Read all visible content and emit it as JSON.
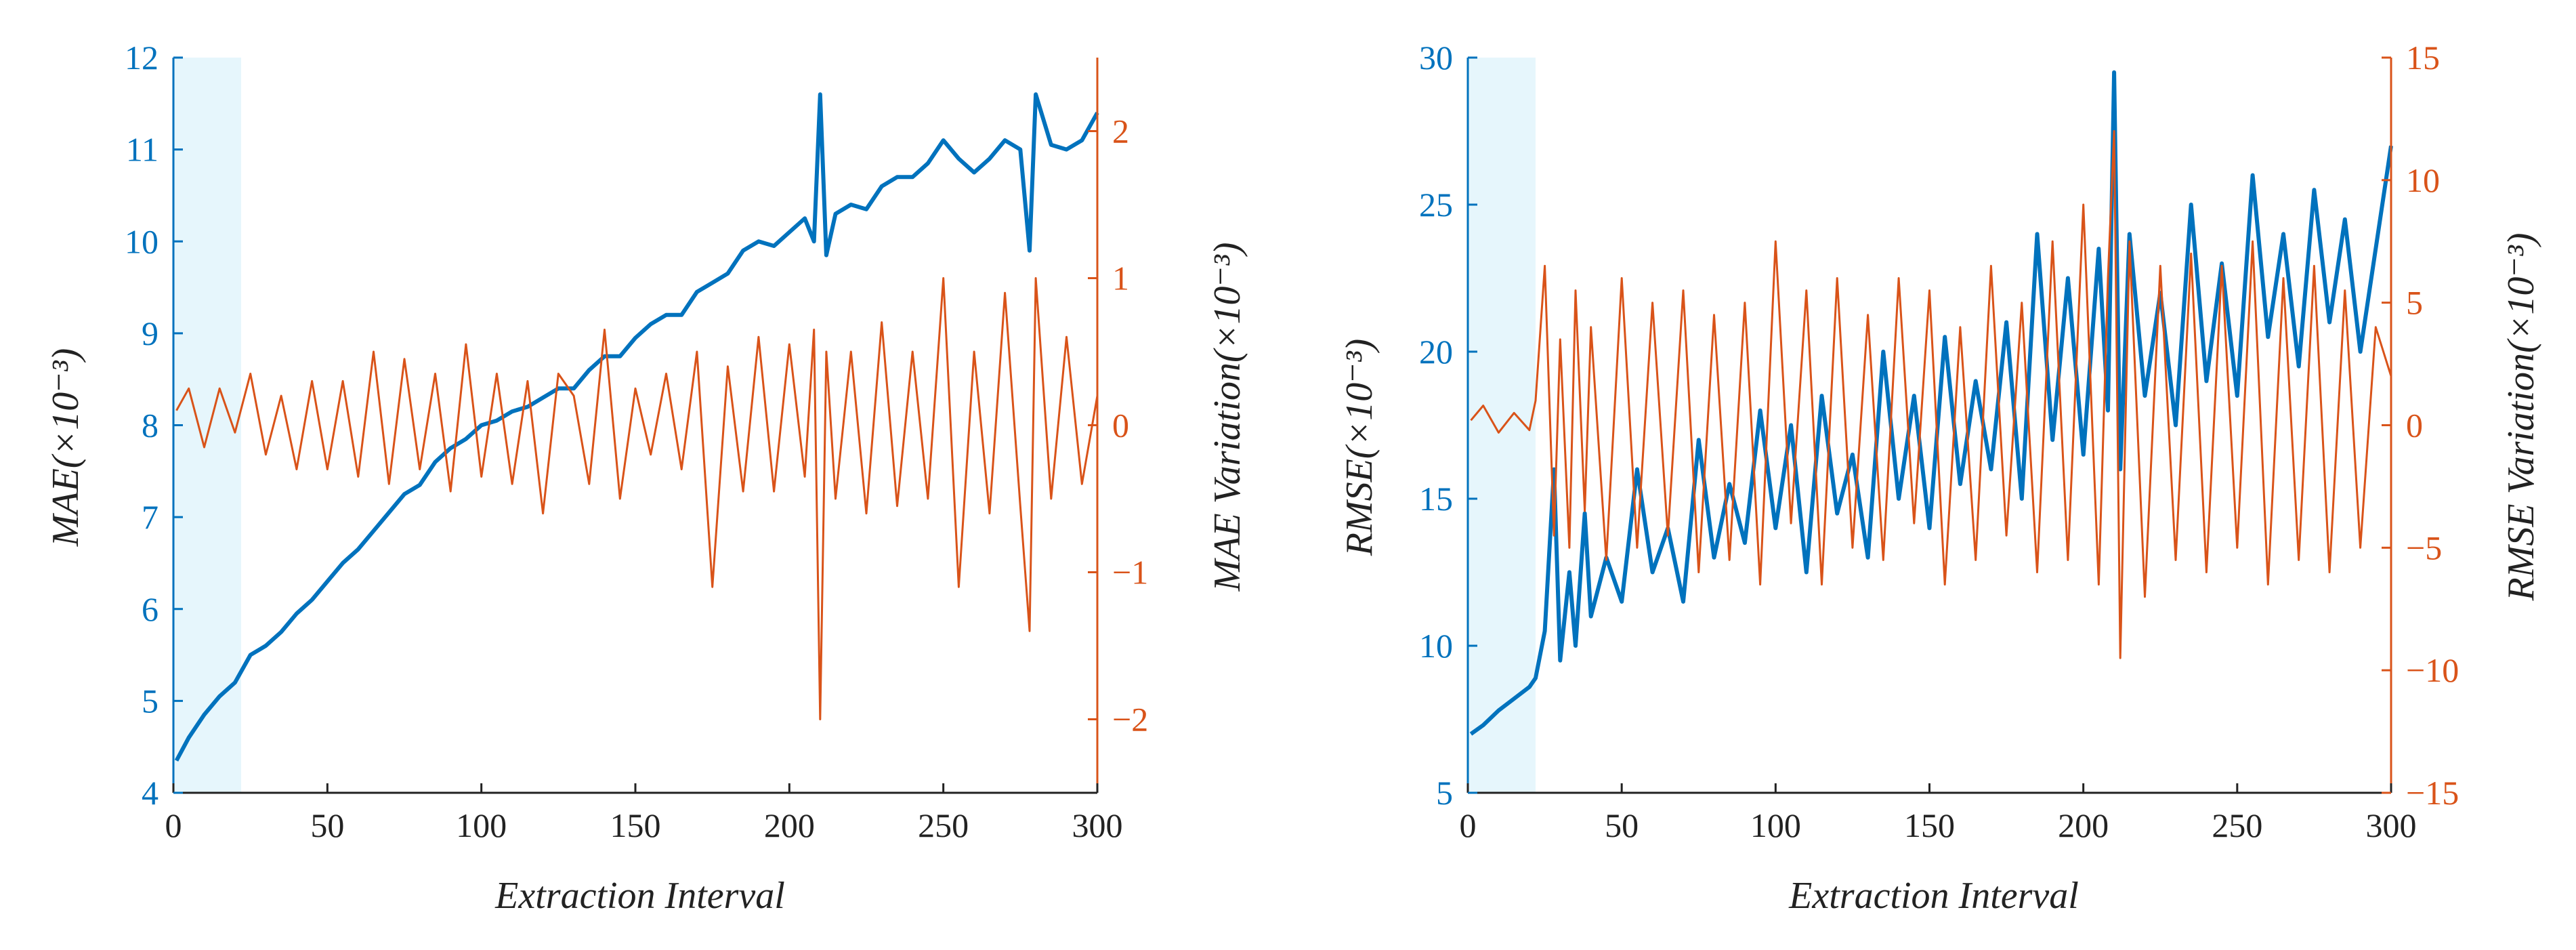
{
  "colors": {
    "left_axis": "#0072BD",
    "right_axis": "#D95319",
    "highlight": "#E6F6FC",
    "axis_black": "#222222"
  },
  "highlight_range": [
    0,
    22
  ],
  "chart_data": [
    {
      "id": "mae",
      "type": "line",
      "title": "",
      "xlabel": "Extraction Interval",
      "ylabel_left": "MAE(×10⁻³)",
      "ylabel_right": "MAE Variation(×10⁻³)",
      "xlim": [
        0,
        300
      ],
      "ylim_left": [
        4,
        12
      ],
      "ylim_right": [
        -2.5,
        2.5
      ],
      "x_ticks": [
        "0",
        "50",
        "100",
        "150",
        "200",
        "250",
        "300"
      ],
      "x_tick_values": [
        0,
        50,
        100,
        150,
        200,
        250,
        300
      ],
      "left_ticks": [
        "4",
        "5",
        "6",
        "7",
        "8",
        "9",
        "10",
        "11",
        "12"
      ],
      "left_tick_values": [
        4,
        5,
        6,
        7,
        8,
        9,
        10,
        11,
        12
      ],
      "right_ticks": [
        "−2",
        "−1",
        "0",
        "1",
        "2"
      ],
      "right_tick_values": [
        -2,
        -1,
        0,
        1,
        2
      ],
      "highlight_range": [
        0,
        22
      ],
      "series": [
        {
          "name": "MAE",
          "axis": "left",
          "x": [
            1,
            5,
            10,
            15,
            20,
            25,
            30,
            35,
            40,
            45,
            50,
            55,
            60,
            65,
            70,
            75,
            80,
            85,
            90,
            95,
            100,
            105,
            110,
            115,
            120,
            125,
            130,
            135,
            140,
            145,
            150,
            155,
            160,
            165,
            170,
            175,
            180,
            185,
            190,
            195,
            200,
            205,
            208,
            210,
            212,
            215,
            220,
            225,
            230,
            235,
            240,
            245,
            250,
            255,
            260,
            265,
            270,
            275,
            278,
            280,
            285,
            290,
            295,
            300
          ],
          "values": [
            4.35,
            4.6,
            4.85,
            5.05,
            5.2,
            5.5,
            5.6,
            5.75,
            5.95,
            6.1,
            6.3,
            6.5,
            6.65,
            6.85,
            7.05,
            7.25,
            7.35,
            7.6,
            7.75,
            7.85,
            8.0,
            8.05,
            8.15,
            8.2,
            8.3,
            8.4,
            8.4,
            8.6,
            8.75,
            8.75,
            8.95,
            9.1,
            9.2,
            9.2,
            9.45,
            9.55,
            9.65,
            9.9,
            10.0,
            9.95,
            10.1,
            10.25,
            10.0,
            11.6,
            9.85,
            10.3,
            10.4,
            10.35,
            10.6,
            10.7,
            10.7,
            10.85,
            11.1,
            10.9,
            10.75,
            10.9,
            11.1,
            11.0,
            9.9,
            11.6,
            11.05,
            11.0,
            11.1,
            11.4
          ],
          "color": "#0072BD"
        },
        {
          "name": "MAE Variation",
          "axis": "right",
          "x": [
            1,
            5,
            10,
            15,
            20,
            25,
            30,
            35,
            40,
            45,
            50,
            55,
            60,
            65,
            70,
            75,
            80,
            85,
            90,
            95,
            100,
            105,
            110,
            115,
            120,
            125,
            130,
            135,
            140,
            145,
            150,
            155,
            160,
            165,
            170,
            175,
            180,
            185,
            190,
            195,
            200,
            205,
            208,
            210,
            212,
            215,
            220,
            225,
            230,
            235,
            240,
            245,
            250,
            255,
            260,
            265,
            270,
            275,
            278,
            280,
            285,
            290,
            295,
            300
          ],
          "values": [
            0.1,
            0.25,
            -0.15,
            0.25,
            -0.05,
            0.35,
            -0.2,
            0.2,
            -0.3,
            0.3,
            -0.3,
            0.3,
            -0.35,
            0.5,
            -0.4,
            0.45,
            -0.3,
            0.35,
            -0.45,
            0.55,
            -0.35,
            0.35,
            -0.4,
            0.3,
            -0.6,
            0.35,
            0.2,
            -0.4,
            0.65,
            -0.5,
            0.25,
            -0.2,
            0.35,
            -0.3,
            0.5,
            -1.1,
            0.4,
            -0.45,
            0.6,
            -0.45,
            0.55,
            -0.35,
            0.65,
            -2.0,
            0.5,
            -0.5,
            0.5,
            -0.6,
            0.7,
            -0.55,
            0.5,
            -0.5,
            1.0,
            -1.1,
            0.5,
            -0.6,
            0.9,
            -0.55,
            -1.4,
            1.0,
            -0.5,
            0.6,
            -0.4,
            0.2
          ],
          "color": "#D95319"
        }
      ]
    },
    {
      "id": "rmse",
      "type": "line",
      "title": "",
      "xlabel": "Extraction Interval",
      "ylabel_left": "RMSE(×10⁻³)",
      "ylabel_right": "RMSE Variation(×10⁻³)",
      "xlim": [
        0,
        300
      ],
      "ylim_left": [
        5,
        30
      ],
      "ylim_right": [
        -15,
        15
      ],
      "x_ticks": [
        "0",
        "50",
        "100",
        "150",
        "200",
        "250",
        "300"
      ],
      "x_tick_values": [
        0,
        50,
        100,
        150,
        200,
        250,
        300
      ],
      "left_ticks": [
        "5",
        "10",
        "15",
        "20",
        "25",
        "30"
      ],
      "left_tick_values": [
        5,
        10,
        15,
        20,
        25,
        30
      ],
      "right_ticks": [
        "−15",
        "−10",
        "−5",
        "0",
        "5",
        "10",
        "15"
      ],
      "right_tick_values": [
        -15,
        -10,
        -5,
        0,
        5,
        10,
        15
      ],
      "highlight_range": [
        0,
        22
      ],
      "series": [
        {
          "name": "RMSE",
          "axis": "left",
          "x": [
            1,
            5,
            10,
            15,
            20,
            22,
            25,
            28,
            30,
            33,
            35,
            38,
            40,
            45,
            50,
            55,
            60,
            65,
            70,
            75,
            80,
            85,
            90,
            95,
            100,
            105,
            110,
            115,
            120,
            125,
            130,
            135,
            140,
            145,
            150,
            155,
            160,
            165,
            170,
            175,
            180,
            185,
            190,
            195,
            200,
            205,
            208,
            210,
            212,
            215,
            220,
            225,
            230,
            235,
            240,
            245,
            250,
            255,
            260,
            265,
            270,
            275,
            280,
            285,
            290,
            295,
            300
          ],
          "values": [
            7.0,
            7.3,
            7.8,
            8.2,
            8.6,
            8.9,
            10.5,
            16.0,
            9.5,
            12.5,
            10.0,
            14.5,
            11.0,
            13.0,
            11.5,
            16.0,
            12.5,
            14.0,
            11.5,
            17.0,
            13.0,
            15.5,
            13.5,
            18.0,
            14.0,
            17.5,
            12.5,
            18.5,
            14.5,
            16.5,
            13.0,
            20.0,
            15.0,
            18.5,
            14.0,
            20.5,
            15.5,
            19.0,
            16.0,
            21.0,
            15.0,
            24.0,
            17.0,
            22.5,
            16.5,
            23.5,
            18.0,
            29.5,
            16.0,
            24.0,
            18.5,
            22.0,
            17.5,
            25.0,
            19.0,
            23.0,
            18.5,
            26.0,
            20.5,
            24.0,
            19.5,
            25.5,
            21.0,
            24.5,
            20.0,
            23.5,
            27.0
          ],
          "color": "#0072BD"
        },
        {
          "name": "RMSE Variation",
          "axis": "right",
          "x": [
            1,
            5,
            10,
            15,
            20,
            22,
            25,
            28,
            30,
            33,
            35,
            38,
            40,
            45,
            50,
            55,
            60,
            65,
            70,
            75,
            80,
            85,
            90,
            95,
            100,
            105,
            110,
            115,
            120,
            125,
            130,
            135,
            140,
            145,
            150,
            155,
            160,
            165,
            170,
            175,
            180,
            185,
            190,
            195,
            200,
            205,
            208,
            210,
            212,
            215,
            220,
            225,
            230,
            235,
            240,
            245,
            250,
            255,
            260,
            265,
            270,
            275,
            280,
            285,
            290,
            295,
            300
          ],
          "values": [
            0.2,
            0.8,
            -0.3,
            0.5,
            -0.2,
            1.0,
            6.5,
            -4.5,
            3.5,
            -5.0,
            5.5,
            -3.5,
            4.0,
            -5.5,
            6.0,
            -5.0,
            5.0,
            -4.5,
            5.5,
            -6.0,
            4.5,
            -5.5,
            5.0,
            -6.5,
            7.5,
            -4.0,
            5.5,
            -6.5,
            6.0,
            -5.0,
            4.5,
            -5.5,
            6.0,
            -4.0,
            5.5,
            -6.5,
            4.0,
            -5.5,
            6.5,
            -4.5,
            5.0,
            -6.0,
            7.5,
            -5.5,
            9.0,
            -6.5,
            6.0,
            12.0,
            -9.5,
            7.5,
            -7.0,
            6.5,
            -5.5,
            7.0,
            -6.0,
            6.5,
            -5.0,
            7.5,
            -6.5,
            6.0,
            -5.5,
            6.5,
            -6.0,
            5.5,
            -5.0,
            4.0,
            2.0
          ],
          "color": "#D95319"
        }
      ]
    }
  ]
}
